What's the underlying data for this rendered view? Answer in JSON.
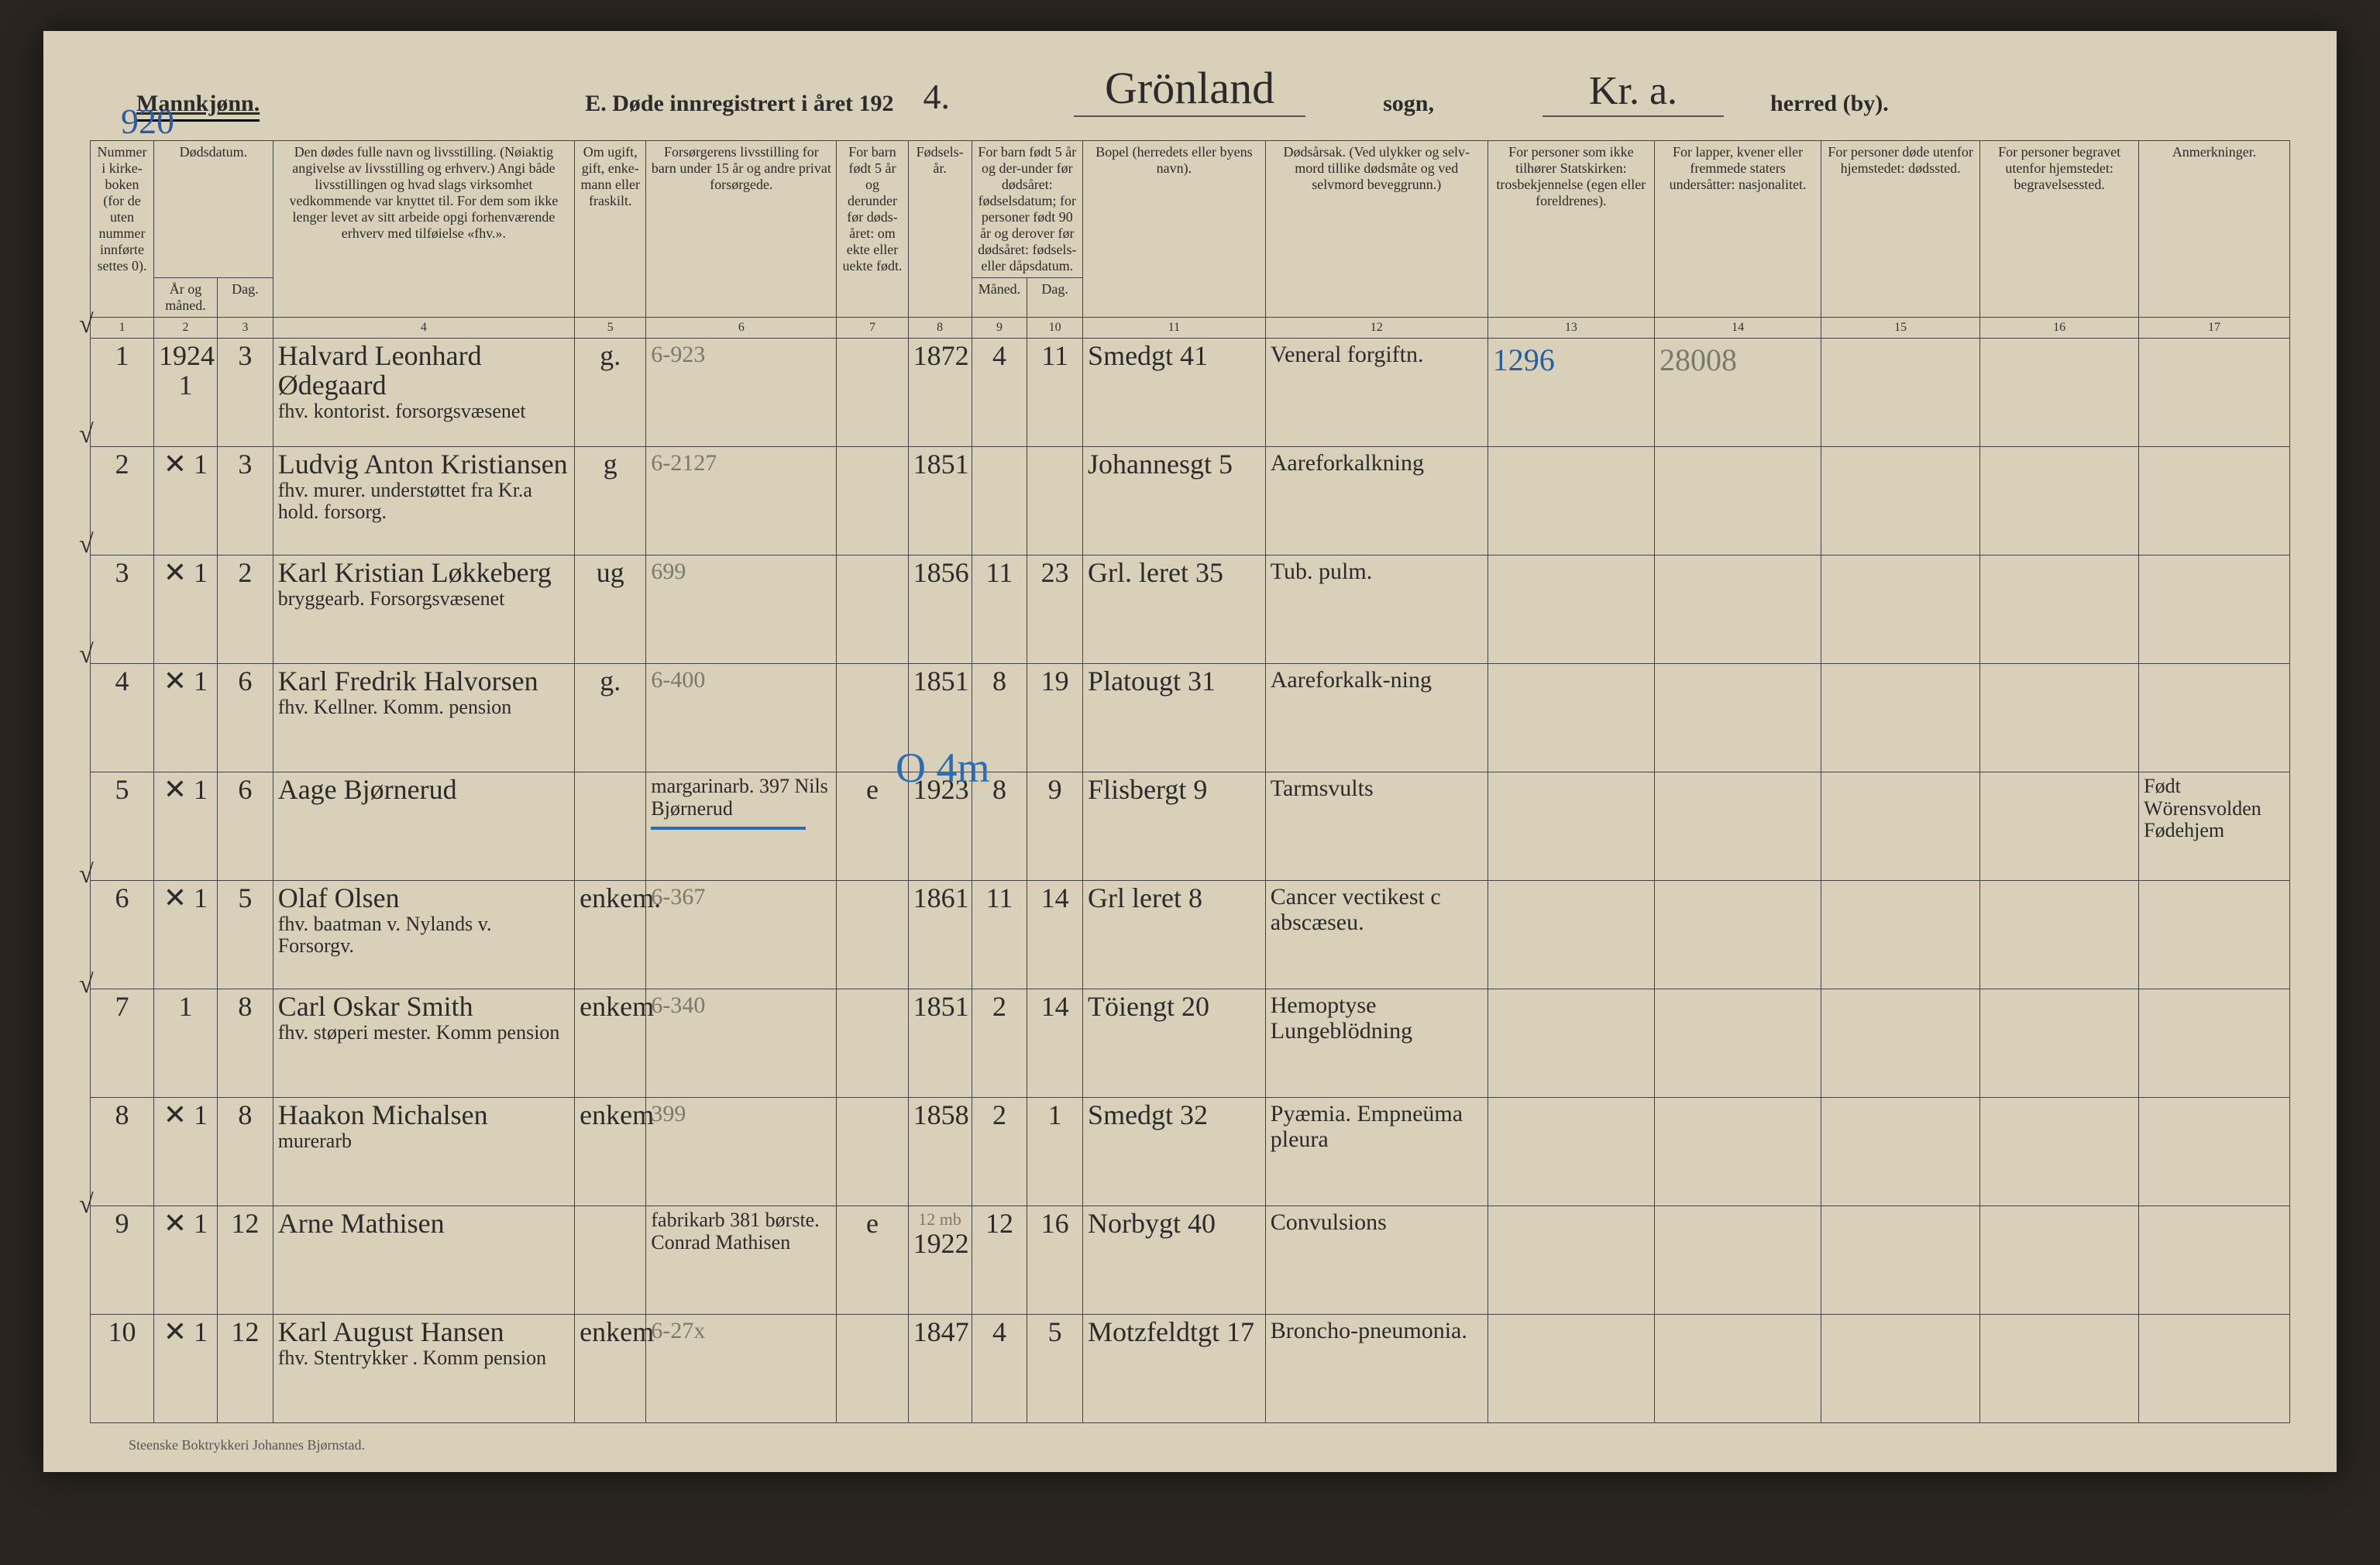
{
  "header": {
    "gender": "Mannkjønn.",
    "page_number": "920",
    "title_prefix": "E.  Døde innregistrert i året 192",
    "year_suffix": "4.",
    "parish": "Grönland",
    "sogn_label": "sogn,",
    "district": "Kr.  a.",
    "herred_label": "herred (by)."
  },
  "columns": {
    "c1": "Nummer i kirke-boken (for de uten nummer innførte settes 0).",
    "c2a_aar": "År og måned.",
    "c2a_dag": "Dag.",
    "c2_group": "Dødsdatum.",
    "c4": "Den dødes fulle navn og livsstilling. (Nøiaktig angivelse av livsstilling og erhverv.) Angi både livsstillingen og hvad slags virksomhet vedkommende var knyttet til. For dem som ikke lenger levet av sitt arbeide opgi forhenværende erhverv med tilføielse «fhv.».",
    "c5": "Om ugift, gift, enke-mann eller fraskilt.",
    "c6": "Forsørgerens livsstilling for barn under 15 år og andre privat forsørgede.",
    "c7": "For barn født 5 år og derunder før døds-året: om ekte eller uekte født.",
    "c8": "Fødsels-år.",
    "c9_group": "For barn født 5 år og der-under før dødsåret: fødselsdatum; for personer født 90 år og derover før dødsåret: fødsels- eller dåpsdatum.",
    "c9_m": "Måned.",
    "c9_d": "Dag.",
    "c11": "Bopel (herredets eller byens navn).",
    "c12": "Dødsårsak. (Ved ulykker og selv-mord tillike dødsmåte og ved selvmord beveggrunn.)",
    "c13": "For personer som ikke tilhører Statskirken: trosbekjennelse (egen eller foreldrenes).",
    "c14": "For lapper, kvener eller fremmede staters undersåtter: nasjonalitet.",
    "c15": "For personer døde utenfor hjemstedet: dødssted.",
    "c16": "For personer begravet utenfor hjemstedet: begravelsessted.",
    "c17": "Anmerkninger."
  },
  "colnums": [
    "1",
    "2",
    "3",
    "4",
    "5",
    "6",
    "7",
    "8",
    "9",
    "10",
    "11",
    "12",
    "13",
    "14",
    "15",
    "16",
    "17"
  ],
  "annotations": {
    "blue_overlay": "O 4m",
    "col13_note": "1296",
    "col14_note": "28008"
  },
  "rows": [
    {
      "tick": "√",
      "n": "1",
      "year": "1924 1",
      "day": "3",
      "name": "Halvard Leonhard Ødegaard",
      "name2": "fhv. kontorist.  forsorgsvæsenet",
      "status": "g.",
      "provider": "6-923",
      "legit": "",
      "birth": "1872",
      "bm": "4",
      "bd": "11",
      "residence": "Smedgt 41",
      "cause": "Veneral forgiftn.",
      "c13": "",
      "c14": "",
      "c17": ""
    },
    {
      "tick": "√",
      "n": "2",
      "year": "✕ 1",
      "day": "3",
      "name": "Ludvig Anton Kristiansen",
      "name2": "fhv. murer.  understøttet fra Kr.a hold. forsorg.",
      "status": "g",
      "provider": "6-2127",
      "legit": "",
      "birth": "1851",
      "bm": "",
      "bd": "",
      "residence": "Johannesgt 5",
      "cause": "Aareforkalkning",
      "c13": "",
      "c14": "",
      "c17": ""
    },
    {
      "tick": "√",
      "n": "3",
      "year": "✕ 1",
      "day": "2",
      "name": "Karl Kristian Løkkeberg",
      "name2": "bryggearb.   Forsorgsvæsenet",
      "status": "ug",
      "provider": "699",
      "legit": "",
      "birth": "1856",
      "bm": "11",
      "bd": "23",
      "residence": "Grl. leret 35",
      "cause": "Tub. pulm.",
      "c13": "",
      "c14": "",
      "c17": ""
    },
    {
      "tick": "√",
      "n": "4",
      "year": "✕ 1",
      "day": "6",
      "name": "Karl Fredrik Halvorsen",
      "name2": "fhv. Kellner.   Komm. pension",
      "status": "g.",
      "provider": "6-400",
      "legit": "",
      "birth": "1851",
      "bm": "8",
      "bd": "19",
      "residence": "Platougt 31",
      "cause": "Aareforkalk-ning",
      "c13": "",
      "c14": "",
      "c17": ""
    },
    {
      "tick": "",
      "n": "5",
      "year": "✕ 1",
      "day": "6",
      "name": "Aage Bjørnerud",
      "name2": "",
      "status": "",
      "provider": "margarinarb. 397 Nils Bjørnerud",
      "legit": "e",
      "birth": "1923",
      "bm": "8",
      "bd": "9",
      "residence": "Flisbergt 9",
      "cause": "Tarmsvults",
      "c13": "",
      "c14": "",
      "c17": "Født Wörensvolden Fødehjem"
    },
    {
      "tick": "√",
      "n": "6",
      "year": "✕ 1",
      "day": "5",
      "name": "Olaf Olsen",
      "name2": "fhv. baatman v. Nylands v.  Forsorgv.",
      "status": "enkem.",
      "provider": "6-367",
      "legit": "",
      "birth": "1861",
      "bm": "11",
      "bd": "14",
      "residence": "Grl leret 8",
      "cause": "Cancer vectikest c abscæseu.",
      "c13": "",
      "c14": "",
      "c17": ""
    },
    {
      "tick": "√",
      "n": "7",
      "year": "1",
      "day": "8",
      "name": "Carl Oskar Smith",
      "name2": "fhv. støperi mester.   Komm pension",
      "status": "enkem",
      "provider": "6-340",
      "legit": "",
      "birth": "1851",
      "bm": "2",
      "bd": "14",
      "residence": "Töiengt 20",
      "cause": "Hemoptyse Lungeblödning",
      "c13": "",
      "c14": "",
      "c17": ""
    },
    {
      "tick": "",
      "n": "8",
      "year": "✕ 1",
      "day": "8",
      "name": "Haakon Michalsen",
      "name2": "murerarb",
      "status": "enkem",
      "provider": "399",
      "legit": "",
      "birth": "1858",
      "bm": "2",
      "bd": "1",
      "residence": "Smedgt 32",
      "cause": "Pyæmia. Empneüma pleura",
      "c13": "",
      "c14": "",
      "c17": ""
    },
    {
      "tick": "√",
      "n": "9",
      "year": "✕ 1",
      "day": "12",
      "name": "Arne Mathisen",
      "name2": "",
      "status": "",
      "provider": "fabrikarb 381 børste. Conrad Mathisen",
      "legit": "e",
      "birth": "1922",
      "bm": "12",
      "bd": "16",
      "residence": "Norbygt 40",
      "cause": "Convulsions",
      "c13": "",
      "c14": "",
      "c17": ""
    },
    {
      "tick": "",
      "n": "10",
      "year": "✕ 1",
      "day": "12",
      "name": "Karl August Hansen",
      "name2": "fhv. Stentrykker . Komm pension",
      "status": "enkem",
      "provider": "6-27x",
      "legit": "",
      "birth": "1847",
      "bm": "4",
      "bd": "5",
      "residence": "Motzfeldtgt 17",
      "cause": "Broncho-pneumonia.",
      "c13": "",
      "c14": "",
      "c17": ""
    }
  ],
  "footer": "Steenske Boktrykkeri Johannes Bjørnstad.",
  "row5_faint_note": "12 mb"
}
